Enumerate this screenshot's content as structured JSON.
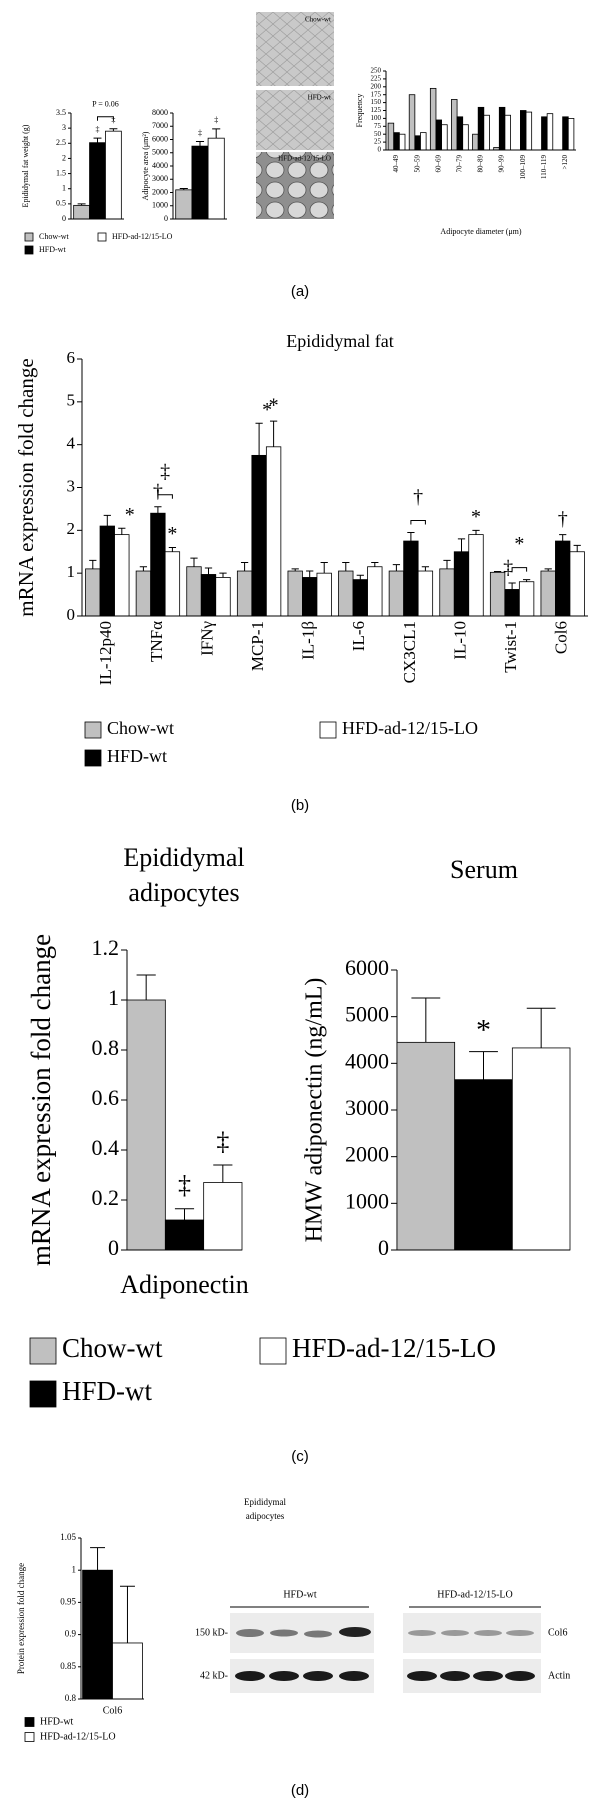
{
  "chart_data": [
    {
      "type": "bar",
      "y_label": "Epididymal fat weight (g)",
      "ylim": [
        0,
        3.5
      ],
      "yticks": [
        0,
        0.5,
        1,
        1.5,
        2,
        2.5,
        3,
        3.5
      ],
      "series": [
        {
          "name": "Chow-wt",
          "color": "#c0c0c0",
          "values": [
            0.45
          ],
          "errors": [
            0.05
          ]
        },
        {
          "name": "HFD-wt",
          "color": "#000000",
          "values": [
            2.52
          ],
          "errors": [
            0.15
          ]
        },
        {
          "name": "HFD-ad-12/15-LO",
          "color": "#ffffff",
          "values": [
            2.9
          ],
          "errors": [
            0.08
          ]
        }
      ],
      "annotations": [
        "P = 0.06",
        "‡",
        "‡"
      ]
    },
    {
      "type": "bar",
      "y_label": "Adipocyte area (μm²)",
      "ylim": [
        0,
        8000
      ],
      "yticks": [
        0,
        1000,
        2000,
        3000,
        4000,
        5000,
        6000,
        7000,
        8000
      ],
      "series": [
        {
          "color": "#c0c0c0",
          "values": [
            2200
          ],
          "errors": [
            100
          ]
        },
        {
          "color": "#000000",
          "values": [
            5500
          ],
          "errors": [
            350
          ]
        },
        {
          "color": "#ffffff",
          "values": [
            6100
          ],
          "errors": [
            700
          ]
        }
      ],
      "annotations": [
        "‡",
        "‡"
      ]
    },
    {
      "type": "bar",
      "y_label": "Frequency",
      "x_label": "Adipocyte diameter (μm)",
      "categories": [
        "40–49",
        "50–59",
        "60–69",
        "70–79",
        "80–89",
        "90–99",
        "100–109",
        "110–119",
        ">120"
      ],
      "ylim": [
        0,
        250
      ],
      "yticks": [
        0,
        25,
        50,
        75,
        100,
        125,
        150,
        175,
        200,
        225,
        250
      ],
      "series": [
        {
          "color": "#c0c0c0",
          "values": [
            85,
            175,
            195,
            160,
            50,
            8,
            0,
            0,
            0
          ]
        },
        {
          "color": "#000000",
          "values": [
            55,
            45,
            95,
            105,
            135,
            135,
            125,
            105,
            105
          ]
        },
        {
          "color": "#ffffff",
          "values": [
            50,
            55,
            80,
            80,
            110,
            110,
            120,
            115,
            100
          ]
        }
      ]
    },
    {
      "type": "bar",
      "title": "Epididymal fat",
      "y_label": "mRNA expression fold change",
      "categories": [
        "IL-12p40",
        "TNFα",
        "IFNγ",
        "MCP-1",
        "IL-1β",
        "IL-6",
        "CX3CL1",
        "IL-10",
        "Twist-1",
        "Col6"
      ],
      "ylim": [
        0,
        6
      ],
      "yticks": [
        0,
        1,
        2,
        3,
        4,
        5,
        6
      ],
      "series": [
        {
          "name": "Chow-wt",
          "color": "#c0c0c0",
          "values": [
            1.1,
            1.05,
            1.15,
            1.05,
            1.05,
            1.05,
            1.05,
            1.1,
            1.02,
            1.05
          ],
          "errors": [
            0.2,
            0.1,
            0.2,
            0.2,
            0.05,
            0.2,
            0.15,
            0.2,
            0.02,
            0.05
          ]
        },
        {
          "name": "HFD-wt",
          "color": "#000000",
          "values": [
            2.1,
            2.4,
            0.97,
            3.75,
            0.9,
            0.85,
            1.75,
            1.5,
            0.62,
            1.75
          ],
          "errors": [
            0.25,
            0.15,
            0.15,
            0.75,
            0.15,
            0.1,
            0.2,
            0.3,
            0.15,
            0.15
          ]
        },
        {
          "name": "HFD-ad-12/15-LO",
          "color": "#ffffff",
          "values": [
            1.9,
            1.5,
            0.9,
            3.95,
            1.0,
            1.15,
            1.05,
            1.9,
            0.8,
            1.5
          ],
          "errors": [
            0.15,
            0.1,
            0.1,
            0.6,
            0.25,
            0.1,
            0.1,
            0.1,
            0.05,
            0.15
          ]
        }
      ],
      "annotations": [
        "*",
        "†",
        "‡",
        "*",
        "*",
        "*",
        "†",
        "*",
        "‡",
        "*",
        "†"
      ]
    },
    {
      "type": "bar",
      "title": [
        "Epididymal",
        "adipocytes"
      ],
      "y_label": "mRNA expression fold change",
      "categories": [
        "Adiponectin"
      ],
      "ylim": [
        0,
        1.2
      ],
      "yticks": [
        0,
        0.2,
        0.4,
        0.6,
        0.8,
        1,
        1.2
      ],
      "series": [
        {
          "name": "Chow-wt",
          "color": "#c0c0c0",
          "values": [
            1.0
          ],
          "errors": [
            0.1
          ]
        },
        {
          "name": "HFD-wt",
          "color": "#000000",
          "values": [
            0.12
          ],
          "errors": [
            0.045
          ]
        },
        {
          "name": "HFD-ad-12/15-LO",
          "color": "#ffffff",
          "values": [
            0.27
          ],
          "errors": [
            0.07
          ]
        }
      ],
      "annotations": [
        "‡",
        "‡"
      ]
    },
    {
      "type": "bar",
      "title": "Serum",
      "y_label": "HMW adiponectin (ng/mL)",
      "ylim": [
        0,
        6000
      ],
      "yticks": [
        0,
        1000,
        2000,
        3000,
        4000,
        5000,
        6000
      ],
      "series": [
        {
          "color": "#c0c0c0",
          "values": [
            4450
          ],
          "errors": [
            950
          ]
        },
        {
          "color": "#000000",
          "values": [
            3650
          ],
          "errors": [
            600
          ]
        },
        {
          "color": "#ffffff",
          "values": [
            4330
          ],
          "errors": [
            850
          ]
        }
      ],
      "annotations": [
        "*"
      ]
    },
    {
      "type": "bar",
      "y_label": "Protein expression fold change",
      "categories": [
        "Col6"
      ],
      "ylim": [
        0.8,
        1.05
      ],
      "yticks": [
        0.8,
        0.85,
        0.9,
        0.95,
        1,
        1.05
      ],
      "series": [
        {
          "name": "HFD-wt",
          "color": "#000000",
          "values": [
            1.0
          ],
          "errors": [
            0.035
          ]
        },
        {
          "name": "HFD-ad-12/15-LO",
          "color": "#ffffff",
          "values": [
            0.887
          ],
          "errors": [
            0.088
          ]
        }
      ]
    }
  ],
  "micrographs": [
    "Chow-wt",
    "HFD-wt",
    "HFD-ad-12/15-LO"
  ],
  "western_blot": {
    "title": [
      "Epididymal",
      "adipocytes"
    ],
    "groups": [
      "HFD-wt",
      "HFD-ad-12/15-LO"
    ],
    "markers": [
      "150 kD-",
      "42 kD-"
    ],
    "bands": [
      "Col6",
      "Actin"
    ]
  },
  "panel_labels": [
    "(a)",
    "(b)",
    "(c)",
    "(d)"
  ]
}
